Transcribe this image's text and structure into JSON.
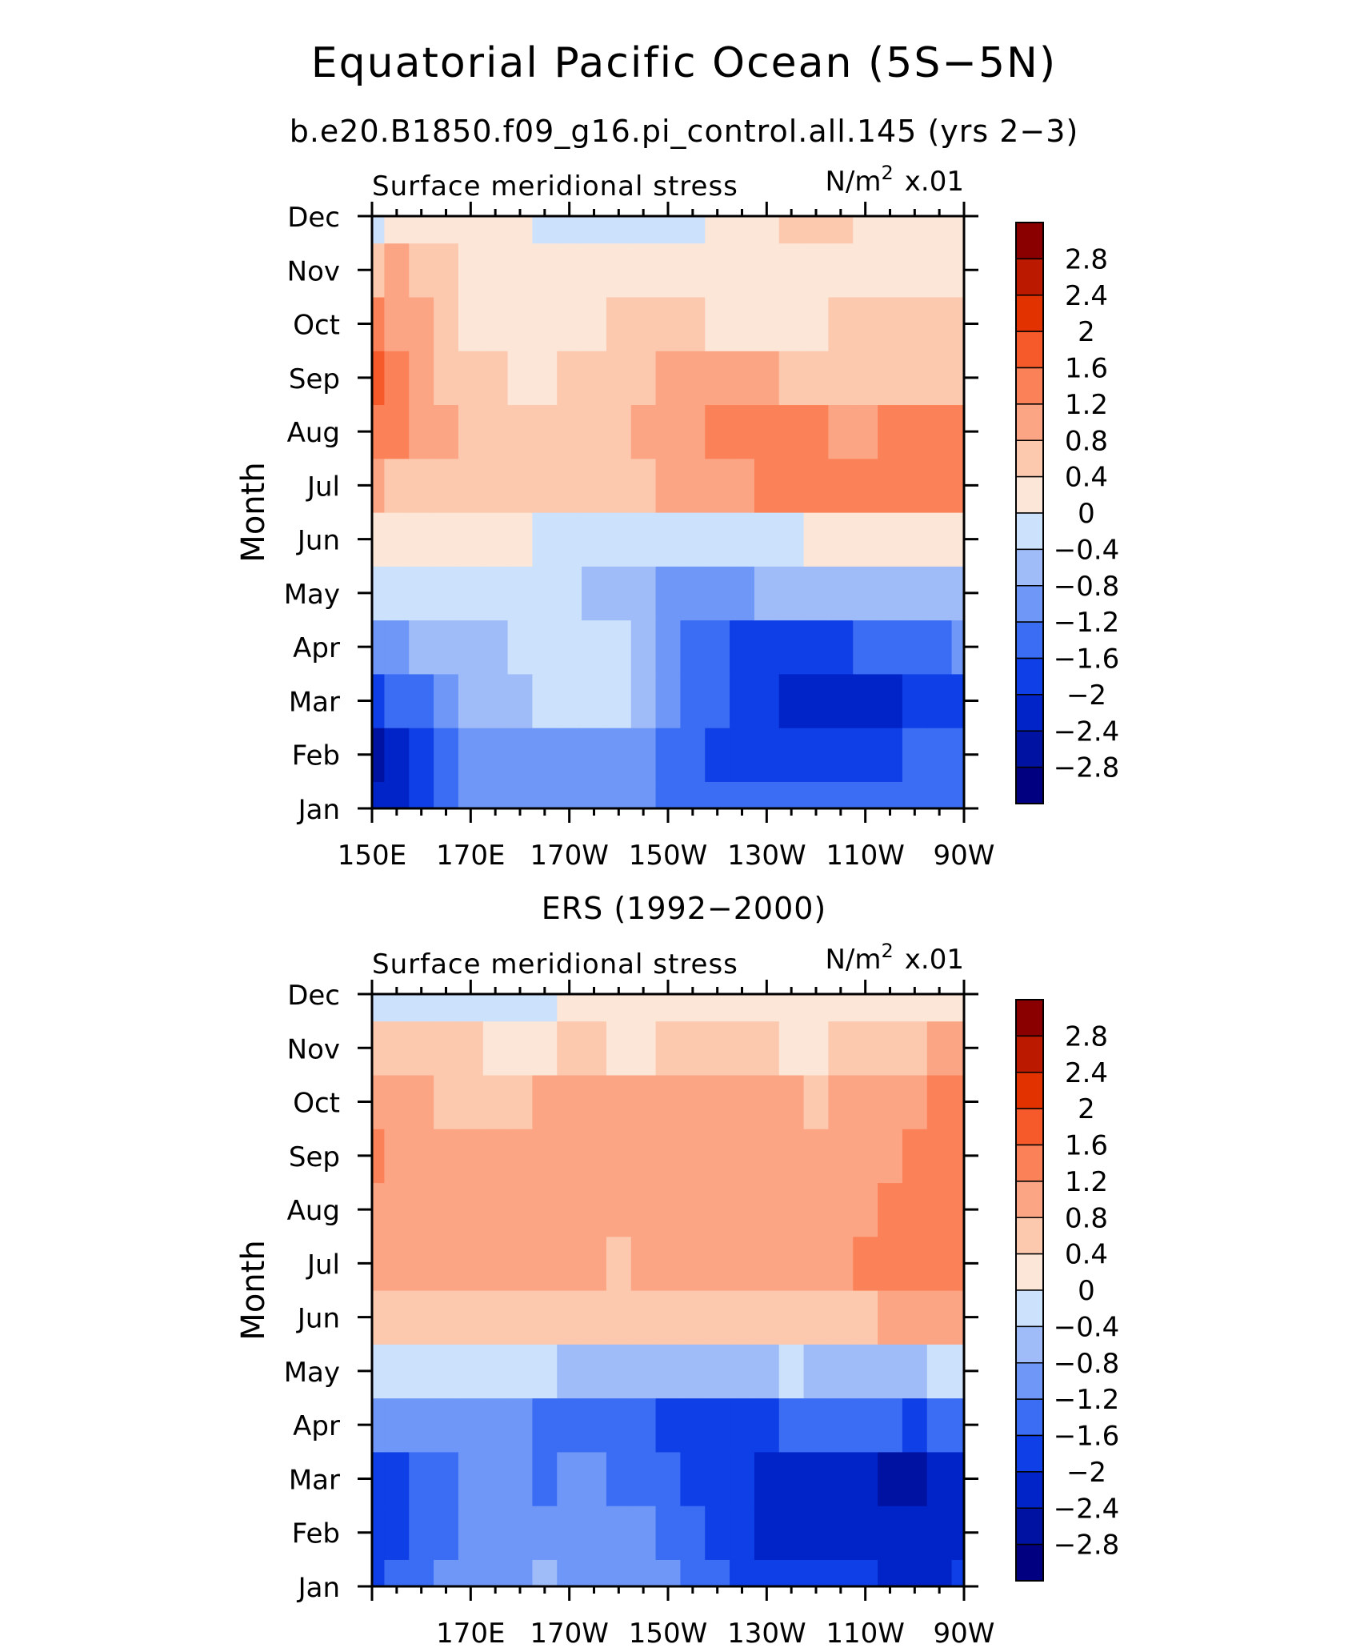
{
  "title": "Equatorial Pacific Ocean (5S−5N)",
  "chart_data": [
    {
      "type": "heatmap",
      "subtitle": "b.e20.B1850.f09_g16.pi_control.all.145 (yrs 2−3)",
      "left_label": "Surface meridional stress",
      "units_base": "N/m",
      "units_exp": "2",
      "units_scale": "x.01",
      "ylabel": "Month",
      "months": [
        "Jan",
        "Feb",
        "Mar",
        "Apr",
        "May",
        "Jun",
        "Jul",
        "Aug",
        "Sep",
        "Oct",
        "Nov",
        "Dec"
      ],
      "xlim": [
        150,
        270
      ],
      "x_tick_labels": [
        "150E",
        "170E",
        "170W",
        "150W",
        "130W",
        "110W",
        "90W"
      ],
      "x_tick_values": [
        150,
        170,
        190,
        210,
        230,
        250,
        270
      ],
      "levels": [
        -2.8,
        -2.4,
        -2,
        -1.6,
        -1.2,
        -0.8,
        -0.4,
        0,
        0.4,
        0.8,
        1.2,
        1.6,
        2,
        2.4,
        2.8
      ],
      "x": [
        150,
        155,
        160,
        165,
        170,
        175,
        180,
        185,
        190,
        195,
        200,
        205,
        210,
        215,
        220,
        225,
        230,
        235,
        240,
        245,
        250,
        255,
        260,
        265,
        270
      ],
      "values": [
        [
          -2.2,
          -2.3,
          -2.0,
          -1.3,
          -1.0,
          -0.9,
          -0.9,
          -0.9,
          -0.9,
          -0.9,
          -0.9,
          -0.9,
          -1.3,
          -1.3,
          -1.3,
          -1.3,
          -1.3,
          -1.3,
          -1.3,
          -1.3,
          -1.3,
          -1.3,
          -1.3,
          -1.3,
          -1.3
        ],
        [
          -2.5,
          -2.3,
          -1.9,
          -1.4,
          -0.9,
          -0.9,
          -0.9,
          -0.9,
          -0.9,
          -0.9,
          -0.9,
          -0.9,
          -1.4,
          -1.5,
          -1.7,
          -1.7,
          -1.8,
          -1.9,
          -1.9,
          -1.9,
          -1.9,
          -1.9,
          -1.6,
          -1.6,
          -1.6
        ],
        [
          -1.9,
          -1.6,
          -1.3,
          -1.0,
          -0.8,
          -0.6,
          -0.5,
          -0.4,
          -0.3,
          -0.3,
          -0.4,
          -0.5,
          -1.2,
          -1.3,
          -1.5,
          -1.7,
          -1.9,
          -2.1,
          -2.1,
          -2.1,
          -2.1,
          -2.1,
          -2.0,
          -1.8,
          -1.7
        ],
        [
          -1.1,
          -0.9,
          -0.8,
          -0.7,
          -0.6,
          -0.5,
          -0.4,
          -0.3,
          -0.3,
          -0.3,
          -0.4,
          -0.5,
          -1.1,
          -1.3,
          -1.6,
          -1.7,
          -1.7,
          -1.7,
          -1.7,
          -1.7,
          -1.6,
          -1.6,
          -1.6,
          -1.4,
          -1.2
        ],
        [
          -0.4,
          -0.4,
          -0.4,
          -0.3,
          -0.3,
          -0.3,
          -0.2,
          -0.2,
          -0.3,
          -0.5,
          -0.8,
          -0.8,
          -0.9,
          -0.9,
          -0.9,
          -0.9,
          -0.8,
          -0.8,
          -0.8,
          -0.7,
          -0.7,
          -0.6,
          -0.6,
          -0.5,
          -0.5
        ],
        [
          0.2,
          0.2,
          0.2,
          0.2,
          0.2,
          0.2,
          0.1,
          -0.1,
          -0.2,
          -0.3,
          -0.3,
          -0.3,
          -0.3,
          -0.3,
          -0.2,
          -0.1,
          -0.1,
          -0.1,
          0.0,
          0.1,
          0.2,
          0.3,
          0.3,
          0.3,
          0.3
        ],
        [
          0.9,
          0.7,
          0.5,
          0.4,
          0.4,
          0.4,
          0.4,
          0.6,
          0.6,
          0.5,
          0.5,
          0.6,
          0.8,
          0.9,
          1.0,
          1.1,
          1.2,
          1.3,
          1.3,
          1.3,
          1.3,
          1.3,
          1.3,
          1.3,
          1.3
        ],
        [
          1.4,
          1.2,
          1.0,
          0.8,
          0.7,
          0.6,
          0.5,
          0.5,
          0.5,
          0.6,
          0.7,
          0.8,
          1.0,
          1.1,
          1.3,
          1.5,
          1.4,
          1.3,
          1.2,
          1.1,
          1.1,
          1.2,
          1.4,
          1.5,
          1.4
        ],
        [
          1.8,
          1.4,
          1.0,
          0.7,
          0.5,
          0.4,
          0.3,
          0.3,
          0.4,
          0.5,
          0.6,
          0.7,
          0.8,
          0.8,
          0.8,
          0.8,
          0.8,
          0.7,
          0.7,
          0.6,
          0.6,
          0.6,
          0.6,
          0.6,
          0.6
        ],
        [
          1.2,
          1.0,
          0.8,
          0.6,
          0.3,
          0.3,
          0.2,
          0.2,
          0.2,
          0.3,
          0.4,
          0.4,
          0.4,
          0.4,
          0.3,
          0.3,
          0.3,
          0.3,
          0.3,
          0.4,
          0.4,
          0.4,
          0.4,
          0.4,
          0.5
        ],
        [
          0.7,
          0.8,
          0.7,
          0.5,
          0.3,
          0.3,
          0.2,
          0.2,
          0.2,
          0.2,
          0.2,
          0.2,
          0.2,
          0.1,
          0.1,
          0.1,
          0.1,
          0.2,
          0.2,
          0.3,
          0.3,
          0.3,
          0.3,
          0.3,
          0.3
        ],
        [
          -0.1,
          0.1,
          0.1,
          0.1,
          0.1,
          0.1,
          0.0,
          -0.1,
          -0.1,
          -0.2,
          -0.2,
          -0.3,
          -0.1,
          -0.1,
          0.1,
          0.3,
          0.3,
          0.4,
          0.4,
          0.4,
          0.3,
          0.3,
          0.3,
          0.3,
          0.3
        ]
      ]
    },
    {
      "type": "heatmap",
      "subtitle": "ERS (1992−2000)",
      "left_label": "Surface meridional stress",
      "units_base": "N/m",
      "units_exp": "2",
      "units_scale": "x.01",
      "ylabel": "Month",
      "months": [
        "Jan",
        "Feb",
        "Mar",
        "Apr",
        "May",
        "Jun",
        "Jul",
        "Aug",
        "Sep",
        "Oct",
        "Nov",
        "Dec"
      ],
      "xlim": [
        150,
        270
      ],
      "x_tick_labels": [
        "170E",
        "170W",
        "150W",
        "130W",
        "110W",
        "90W"
      ],
      "x_tick_values": [
        170,
        190,
        210,
        230,
        250,
        270
      ],
      "levels": [
        -2.8,
        -2.4,
        -2,
        -1.6,
        -1.2,
        -0.8,
        -0.4,
        0,
        0.4,
        0.8,
        1.2,
        1.6,
        2,
        2.4,
        2.8
      ],
      "x": [
        150,
        155,
        160,
        165,
        170,
        175,
        180,
        185,
        190,
        195,
        200,
        205,
        210,
        215,
        220,
        225,
        230,
        235,
        240,
        245,
        250,
        255,
        260,
        265,
        270
      ],
      "values": [
        [
          -1.7,
          -1.5,
          -1.3,
          -1.2,
          -1.1,
          -1.0,
          -0.9,
          -0.8,
          -0.9,
          -0.9,
          -0.9,
          -1.0,
          -1.1,
          -1.3,
          -1.5,
          -1.7,
          -1.8,
          -1.9,
          -2.0,
          -2.0,
          -2.0,
          -2.1,
          -2.1,
          -2.1,
          -2.0
        ],
        [
          -2.0,
          -1.7,
          -1.5,
          -1.3,
          -1.1,
          -0.9,
          -0.9,
          -1.1,
          -1.0,
          -1.0,
          -1.1,
          -1.2,
          -1.3,
          -1.5,
          -1.7,
          -1.9,
          -2.1,
          -2.2,
          -2.3,
          -2.3,
          -2.3,
          -2.4,
          -2.4,
          -2.3,
          -2.2
        ],
        [
          -1.9,
          -1.7,
          -1.5,
          -1.4,
          -1.2,
          -1.1,
          -1.0,
          -1.3,
          -1.2,
          -1.2,
          -1.3,
          -1.4,
          -1.6,
          -1.8,
          -1.9,
          -2.0,
          -2.1,
          -2.2,
          -2.3,
          -2.3,
          -2.4,
          -2.5,
          -2.5,
          -2.4,
          -2.2
        ],
        [
          -1.0,
          -1.0,
          -1.1,
          -1.1,
          -1.1,
          -1.1,
          -1.2,
          -1.3,
          -1.3,
          -1.4,
          -1.5,
          -1.6,
          -1.7,
          -1.8,
          -1.8,
          -1.8,
          -1.7,
          -1.6,
          -1.5,
          -1.4,
          -1.5,
          -1.6,
          -1.7,
          -1.6,
          -1.4
        ],
        [
          -0.1,
          -0.2,
          -0.2,
          -0.3,
          -0.3,
          -0.3,
          -0.4,
          -0.4,
          -0.5,
          -0.5,
          -0.6,
          -0.6,
          -0.6,
          -0.6,
          -0.6,
          -0.5,
          -0.5,
          -0.4,
          -0.5,
          -0.5,
          -0.6,
          -0.6,
          -0.5,
          -0.4,
          -0.4
        ],
        [
          0.6,
          0.6,
          0.6,
          0.5,
          0.6,
          0.6,
          0.6,
          0.5,
          0.5,
          0.4,
          0.4,
          0.5,
          0.5,
          0.6,
          0.6,
          0.5,
          0.5,
          0.5,
          0.5,
          0.6,
          0.7,
          0.9,
          1.1,
          1.0,
          0.8
        ],
        [
          0.8,
          0.9,
          0.9,
          0.9,
          1.0,
          1.0,
          1.0,
          0.9,
          0.9,
          0.8,
          0.7,
          0.9,
          0.9,
          1.0,
          1.0,
          1.0,
          0.9,
          0.9,
          0.9,
          1.0,
          1.2,
          1.3,
          1.4,
          1.4,
          1.3
        ],
        [
          1.0,
          0.9,
          0.9,
          0.9,
          1.0,
          1.1,
          1.0,
          1.0,
          1.1,
          1.1,
          1.1,
          1.1,
          1.1,
          1.1,
          1.1,
          1.1,
          1.1,
          1.0,
          0.9,
          1.0,
          1.1,
          1.2,
          1.3,
          1.4,
          1.3
        ],
        [
          1.3,
          1.1,
          0.9,
          0.8,
          0.8,
          0.8,
          0.9,
          1.1,
          1.1,
          1.1,
          1.0,
          1.0,
          1.1,
          1.1,
          1.1,
          1.0,
          1.0,
          0.9,
          0.8,
          0.9,
          1.0,
          1.1,
          1.2,
          1.3,
          1.3
        ],
        [
          0.9,
          0.9,
          0.8,
          0.7,
          0.7,
          0.6,
          0.7,
          0.8,
          0.9,
          0.9,
          0.9,
          0.9,
          0.9,
          0.9,
          0.9,
          0.9,
          0.9,
          0.8,
          0.7,
          0.8,
          0.9,
          1.0,
          1.1,
          1.2,
          1.2
        ],
        [
          0.5,
          0.5,
          0.5,
          0.4,
          0.4,
          0.3,
          0.3,
          0.3,
          0.4,
          0.4,
          0.3,
          0.3,
          0.4,
          0.4,
          0.4,
          0.4,
          0.4,
          0.3,
          0.3,
          0.5,
          0.6,
          0.7,
          0.7,
          0.8,
          0.8
        ],
        [
          -0.2,
          -0.2,
          -0.3,
          -0.3,
          -0.2,
          -0.1,
          -0.1,
          -0.1,
          0.0,
          0.1,
          0.1,
          0.1,
          0.1,
          0.2,
          0.2,
          0.2,
          0.2,
          0.1,
          0.2,
          0.3,
          0.3,
          0.3,
          0.2,
          0.2,
          0.3
        ]
      ]
    }
  ],
  "colorbar": {
    "colors": [
      "#000080",
      "#0012a2",
      "#0024c8",
      "#0f3fe6",
      "#3a6cf4",
      "#6e97f8",
      "#9fbcf8",
      "#cce1fb",
      "#fbe6d8",
      "#fcc8ae",
      "#fca585",
      "#fb8258",
      "#f65a2a",
      "#e23200",
      "#bb1a00",
      "#8a0000"
    ],
    "labels": [
      "2.8",
      "2.4",
      "2",
      "1.6",
      "1.2",
      "0.8",
      "0.4",
      "0",
      "−0.4",
      "−0.8",
      "−1.2",
      "−1.6",
      "−2",
      "−2.4",
      "−2.8"
    ]
  }
}
